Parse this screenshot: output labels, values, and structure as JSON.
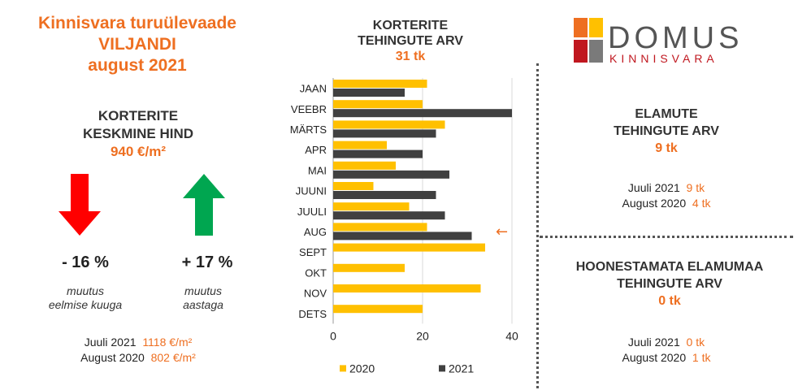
{
  "header": {
    "title_line1": "Kinnisvara turuülevaade",
    "title_line2": "VILJANDI",
    "title_line3": "august 2021"
  },
  "price": {
    "heading_line1": "KORTERITE",
    "heading_line2": "KESKMINE HIND",
    "value": "940 €/m²",
    "change_month": "- 16 %",
    "change_month_note_line1": "muutus",
    "change_month_note_line2": "eelmise kuuga",
    "change_year": "+ 17 %",
    "change_year_note_line1": "muutus",
    "change_year_note_line2": "aastaga",
    "cmp1_label": "Juuli 2021",
    "cmp1_value": "1118 €/m²",
    "cmp2_label": "August 2020",
    "cmp2_value": "802 €/m²",
    "down_color": "#ff0000",
    "up_color": "#00a650"
  },
  "apartments_chart": {
    "heading_line1": "KORTERITE",
    "heading_line2": "TEHINGUTE ARV",
    "value": "31 tk"
  },
  "chart_data": {
    "type": "bar",
    "orientation": "horizontal",
    "categories": [
      "JAAN",
      "VEEBR",
      "MÄRTS",
      "APR",
      "MAI",
      "JUUNI",
      "JUULI",
      "AUG",
      "SEPT",
      "OKT",
      "NOV",
      "DETS"
    ],
    "series": [
      {
        "name": "2020",
        "color": "#ffc000",
        "values": [
          21,
          20,
          25,
          12,
          14,
          9,
          17,
          21,
          34,
          16,
          33,
          20
        ]
      },
      {
        "name": "2021",
        "color": "#404040",
        "values": [
          16,
          40,
          23,
          20,
          26,
          23,
          25,
          31,
          null,
          null,
          null,
          null
        ]
      }
    ],
    "xlim": [
      0,
      40
    ],
    "xticks": [
      0,
      20,
      40
    ],
    "grid": true,
    "legend": "bottom",
    "annotation": {
      "category": "AUG",
      "symbol": "←",
      "color": "#ee6f21"
    }
  },
  "houses": {
    "heading_line1": "ELAMUTE",
    "heading_line2": "TEHINGUTE ARV",
    "value": "9 tk",
    "cmp1_label": "Juuli 2021",
    "cmp1_value": "9 tk",
    "cmp2_label": "August 2020",
    "cmp2_value": "4 tk"
  },
  "land": {
    "heading_line1": "HOONESTAMATA ELAMUMAA",
    "heading_line2": "TEHINGUTE ARV",
    "value": "0 tk",
    "cmp1_label": "Juuli 2021",
    "cmp1_value": "0 tk",
    "cmp2_label": "August 2020",
    "cmp2_value": "1 tk"
  },
  "logo": {
    "name": "DOMUS",
    "sub": "KINNISVARA",
    "colors": [
      "#ee6f21",
      "#ffc000",
      "#c0171f",
      "#7a7a7a"
    ]
  }
}
